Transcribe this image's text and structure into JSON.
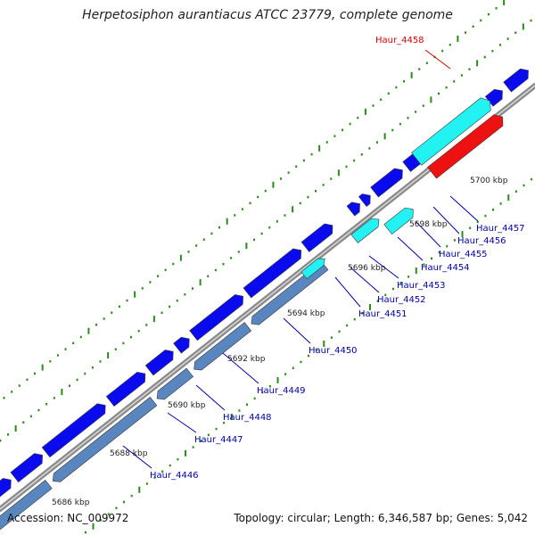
{
  "title": "Herpetosiphon aurantiacus ATCC 23779, complete genome",
  "footer": {
    "accession": "Accession: NC_009972",
    "topology": "Topology: circular; Length: 6,346,587 bp; Genes: 5,042"
  },
  "colors": {
    "forward_gene": "#0a0aee",
    "reverse_gene": "#5a86c0",
    "highlight_forward": "#22f2f2",
    "highlight_reverse": "#ee1111",
    "backbone": "#888888",
    "tick": "#2a8a1a",
    "label": "#0000aa",
    "label_highlight": "#dd0000"
  },
  "scale_labels": [
    "5686 kbp",
    "5688 kbp",
    "5690 kbp",
    "5692 kbp",
    "5694 kbp",
    "5696 kbp",
    "5698 kbp",
    "5700 kbp"
  ],
  "gene_labels": [
    {
      "name": "Haur_4446",
      "highlight": false
    },
    {
      "name": "Haur_4447",
      "highlight": false
    },
    {
      "name": "Haur_4448",
      "highlight": false
    },
    {
      "name": "Haur_4449",
      "highlight": false
    },
    {
      "name": "Haur_4450",
      "highlight": false
    },
    {
      "name": "Haur_4451",
      "highlight": false
    },
    {
      "name": "Haur_4452",
      "highlight": false
    },
    {
      "name": "Haur_4453",
      "highlight": false
    },
    {
      "name": "Haur_4454",
      "highlight": false
    },
    {
      "name": "Haur_4455",
      "highlight": false
    },
    {
      "name": "Haur_4456",
      "highlight": false
    },
    {
      "name": "Haur_4457",
      "highlight": false
    },
    {
      "name": "Haur_4458",
      "highlight": true
    }
  ]
}
